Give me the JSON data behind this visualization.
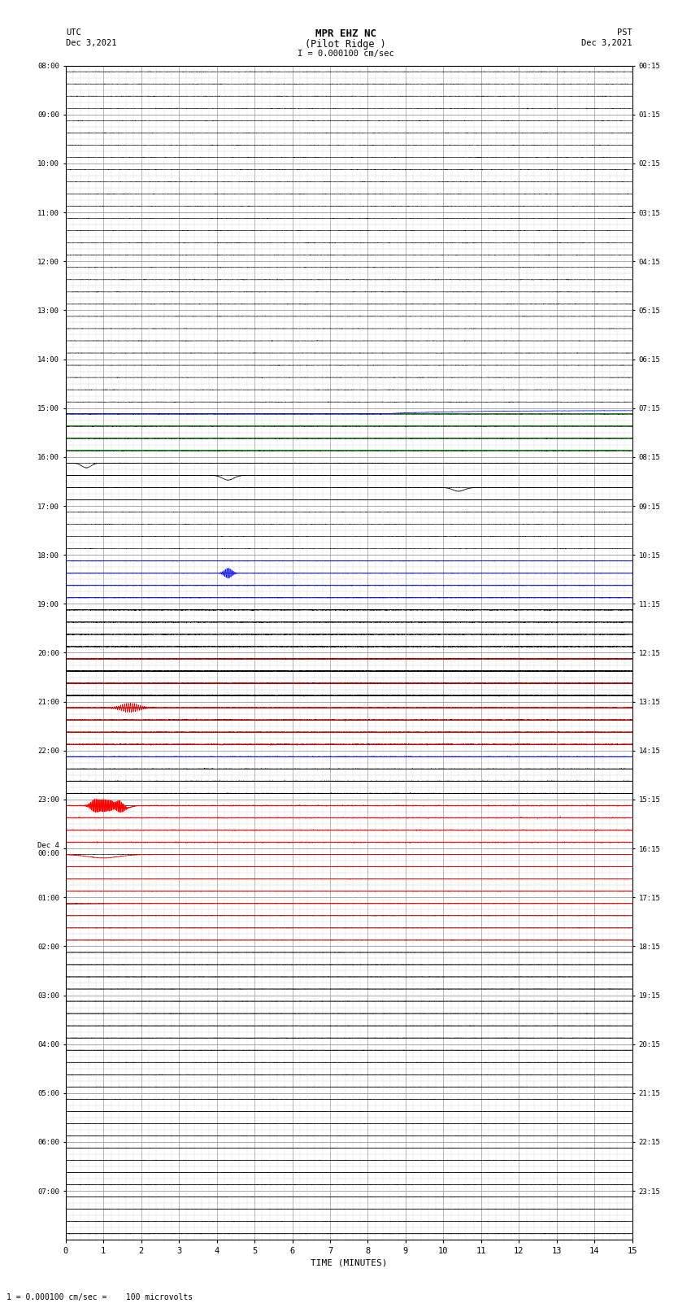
{
  "title_line1": "MPR EHZ NC",
  "title_line2": "(Pilot Ridge )",
  "title_line3": "I = 0.000100 cm/sec",
  "left_label_top": "UTC",
  "left_label_date": "Dec 3,2021",
  "right_label_top": "PST",
  "right_label_date": "Dec 3,2021",
  "xlabel": "TIME (MINUTES)",
  "footer": "1 = 0.000100 cm/sec =    100 microvolts",
  "utc_labels": [
    "08:00",
    "09:00",
    "10:00",
    "11:00",
    "12:00",
    "13:00",
    "14:00",
    "15:00",
    "16:00",
    "17:00",
    "18:00",
    "19:00",
    "20:00",
    "21:00",
    "22:00",
    "23:00",
    "Dec 4\n00:00",
    "01:00",
    "02:00",
    "03:00",
    "04:00",
    "05:00",
    "06:00",
    "07:00"
  ],
  "pst_labels": [
    "00:15",
    "01:15",
    "02:15",
    "03:15",
    "04:15",
    "05:15",
    "06:15",
    "07:15",
    "08:15",
    "09:15",
    "10:15",
    "11:15",
    "12:15",
    "13:15",
    "14:15",
    "15:15",
    "16:15",
    "17:15",
    "18:15",
    "19:15",
    "20:15",
    "21:15",
    "22:15",
    "23:15"
  ],
  "n_rows": 24,
  "n_cols": 15,
  "n_subrows": 4,
  "bg_color": "#ffffff",
  "grid_color_major": "#999999",
  "grid_color_minor": "#cccccc",
  "trace_color_default": "#000000"
}
